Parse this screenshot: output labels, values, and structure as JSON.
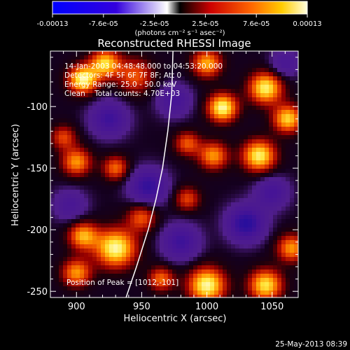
{
  "colorbar": {
    "tick_labels": [
      "-0.00013",
      "-7.6e-05",
      "-2.5e-05",
      "2.5e-05",
      "7.6e-05",
      "0.00013"
    ],
    "unit_label": "(photons cm⁻² s⁻¹ asec⁻²)",
    "range": [
      -0.00013,
      0.00013
    ]
  },
  "chart_data": {
    "type": "heatmap",
    "title": "Reconstructed RHESSI Image",
    "xlabel": "Heliocentric X (arcsec)",
    "ylabel": "Heliocentric Y (arcsec)",
    "xlim": [
      880,
      1070
    ],
    "ylim": [
      -255,
      -55
    ],
    "x_ticks": [
      900,
      950,
      1000,
      1050
    ],
    "y_ticks": [
      -100,
      -150,
      -200,
      -250
    ],
    "annotations": [
      "14-Jan-2003 04:48:48.000 to 04:53:20.000",
      "Detectors: 4F 5F 6F 7F 8F; Att 0",
      "Energy Range: 25.0 - 50.0 keV",
      "Clean    Total counts: 4.70E+03"
    ],
    "peak_label": "Position of Peak = [1012,-101]",
    "peak": [
      1012,
      -101
    ],
    "limb_curve": [
      [
        938,
        -255
      ],
      [
        946,
        -230
      ],
      [
        955,
        -200
      ],
      [
        961,
        -175
      ],
      [
        966,
        -150
      ],
      [
        970,
        -120
      ],
      [
        973,
        -90
      ],
      [
        974,
        -55
      ]
    ],
    "hotspots": [
      {
        "x": 905,
        "y": -78,
        "v": 1.0,
        "s": 8
      },
      {
        "x": 922,
        "y": -65,
        "v": 0.85,
        "s": 8
      },
      {
        "x": 945,
        "y": -75,
        "v": 0.55,
        "s": 10
      },
      {
        "x": 1012,
        "y": -101,
        "v": 1.0,
        "s": 8
      },
      {
        "x": 1045,
        "y": -85,
        "v": 0.95,
        "s": 9
      },
      {
        "x": 1062,
        "y": -110,
        "v": 0.85,
        "s": 8
      },
      {
        "x": 1000,
        "y": -65,
        "v": 0.75,
        "s": 8
      },
      {
        "x": 1040,
        "y": -140,
        "v": 0.95,
        "s": 9
      },
      {
        "x": 1005,
        "y": -140,
        "v": 0.7,
        "s": 8
      },
      {
        "x": 900,
        "y": -145,
        "v": 0.7,
        "s": 8
      },
      {
        "x": 930,
        "y": -150,
        "v": 0.6,
        "s": 7
      },
      {
        "x": 890,
        "y": -125,
        "v": 0.5,
        "s": 7
      },
      {
        "x": 985,
        "y": -130,
        "v": 0.55,
        "s": 7
      },
      {
        "x": 930,
        "y": -215,
        "v": 1.0,
        "s": 11
      },
      {
        "x": 905,
        "y": -205,
        "v": 0.75,
        "s": 8
      },
      {
        "x": 900,
        "y": -235,
        "v": 0.7,
        "s": 8
      },
      {
        "x": 950,
        "y": -190,
        "v": 0.55,
        "s": 8
      },
      {
        "x": 1000,
        "y": -245,
        "v": 1.0,
        "s": 10
      },
      {
        "x": 1045,
        "y": -245,
        "v": 0.9,
        "s": 9
      },
      {
        "x": 1065,
        "y": -215,
        "v": 0.7,
        "s": 8
      },
      {
        "x": 985,
        "y": -175,
        "v": 0.5,
        "s": 7
      },
      {
        "x": 965,
        "y": -240,
        "v": 0.6,
        "s": 7
      },
      {
        "x": 1030,
        "y": -195,
        "v": -0.8,
        "s": 10
      },
      {
        "x": 980,
        "y": -210,
        "v": -0.6,
        "s": 10
      },
      {
        "x": 925,
        "y": -110,
        "v": -0.6,
        "s": 10
      },
      {
        "x": 955,
        "y": -165,
        "v": -0.7,
        "s": 10
      },
      {
        "x": 1050,
        "y": -170,
        "v": -0.5,
        "s": 9
      },
      {
        "x": 895,
        "y": -180,
        "v": -0.4,
        "s": 9
      },
      {
        "x": 975,
        "y": -95,
        "v": -0.5,
        "s": 9
      },
      {
        "x": 1060,
        "y": -65,
        "v": -0.4,
        "s": 8
      }
    ]
  },
  "timestamp": "25-May-2013 08:39"
}
